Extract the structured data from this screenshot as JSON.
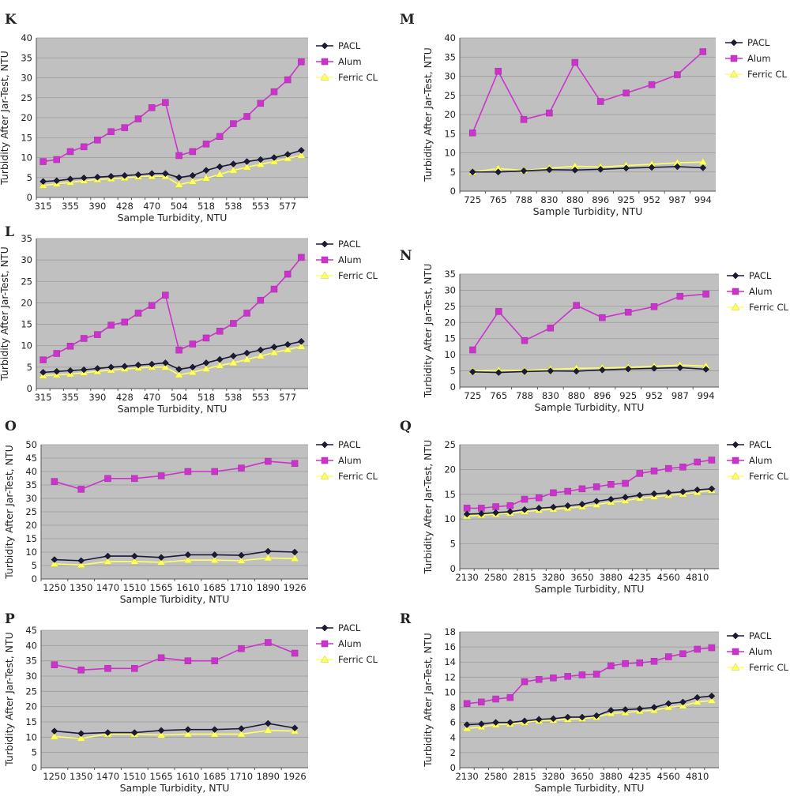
{
  "chart_data": [
    {
      "panel": "K",
      "type": "line",
      "categories": [
        "315",
        "",
        "355",
        "",
        "390",
        "",
        "428",
        "",
        "470",
        "",
        "504",
        "",
        "518",
        "",
        "538",
        "",
        "553",
        "",
        "577",
        ""
      ],
      "xlabel": "Sample Turbidity, NTU",
      "ylabel": "Turbidity After Jar-Test, NTU",
      "ylim": [
        0,
        40
      ],
      "ystep": 5,
      "grid": true,
      "legend": "right",
      "series": [
        {
          "name": "PACL",
          "values": [
            4.0,
            4.2,
            4.6,
            4.9,
            5.1,
            5.3,
            5.5,
            5.7,
            6.0,
            6.0,
            5.0,
            5.5,
            6.8,
            7.7,
            8.4,
            9.0,
            9.5,
            10.0,
            10.8,
            11.8
          ]
        },
        {
          "name": "Alum",
          "values": [
            9.0,
            9.5,
            11.5,
            12.7,
            14.4,
            16.5,
            17.5,
            19.7,
            22.5,
            23.8,
            10.5,
            11.5,
            13.4,
            15.3,
            18.5,
            20.3,
            23.6,
            26.5,
            29.5,
            34.0
          ]
        },
        {
          "name": "Ferric CL",
          "values": [
            3.0,
            3.4,
            3.8,
            4.2,
            4.5,
            4.7,
            4.9,
            5.2,
            5.3,
            5.3,
            3.2,
            4.0,
            4.8,
            5.8,
            6.8,
            7.6,
            8.3,
            9.0,
            9.8,
            10.5
          ]
        }
      ]
    },
    {
      "panel": "M",
      "type": "line",
      "categories": [
        "725",
        "765",
        "788",
        "830",
        "880",
        "896",
        "925",
        "952",
        "987",
        "994"
      ],
      "xlabel": "Sample Turbidity, NTU",
      "ylabel": "Turbidity After Jar-Test, NTU",
      "ylim": [
        0,
        40
      ],
      "ystep": 5,
      "grid": true,
      "legend": "right",
      "series": [
        {
          "name": "PACL",
          "values": [
            5.0,
            5.0,
            5.3,
            5.6,
            5.5,
            5.7,
            6.0,
            6.2,
            6.4,
            6.1
          ]
        },
        {
          "name": "Alum",
          "values": [
            15.2,
            31.3,
            18.7,
            20.4,
            33.6,
            23.4,
            25.6,
            27.8,
            30.4,
            36.4
          ]
        },
        {
          "name": "Ferric CL",
          "values": [
            5.0,
            5.9,
            5.4,
            6.0,
            6.5,
            6.3,
            6.7,
            7.0,
            7.4,
            7.6
          ]
        }
      ]
    },
    {
      "panel": "L",
      "type": "line",
      "categories": [
        "315",
        "",
        "355",
        "",
        "390",
        "",
        "428",
        "",
        "470",
        "",
        "504",
        "",
        "518",
        "",
        "538",
        "",
        "553",
        "",
        "577",
        ""
      ],
      "xlabel": "Sample Turbidity, NTU",
      "ylabel": "Turbidity After Jar-Test, NTU",
      "ylim": [
        0,
        35
      ],
      "ystep": 5,
      "grid": true,
      "legend": "right",
      "series": [
        {
          "name": "PACL",
          "values": [
            3.8,
            4.0,
            4.2,
            4.4,
            4.7,
            5.0,
            5.2,
            5.5,
            5.7,
            6.0,
            4.5,
            5.0,
            6.0,
            6.8,
            7.6,
            8.3,
            9.0,
            9.7,
            10.3,
            11.0
          ]
        },
        {
          "name": "Alum",
          "values": [
            6.7,
            8.2,
            9.9,
            11.7,
            12.6,
            14.8,
            15.5,
            17.6,
            19.4,
            21.8,
            9.0,
            10.4,
            11.8,
            13.4,
            15.2,
            17.6,
            20.6,
            23.2,
            26.7,
            30.6
          ]
        },
        {
          "name": "Ferric CL",
          "values": [
            3.0,
            3.2,
            3.4,
            3.7,
            4.0,
            4.3,
            4.6,
            4.8,
            5.0,
            5.0,
            3.2,
            3.8,
            4.6,
            5.4,
            6.0,
            6.8,
            7.6,
            8.4,
            9.1,
            9.8
          ]
        }
      ]
    },
    {
      "panel": "N",
      "type": "line",
      "categories": [
        "725",
        "765",
        "788",
        "830",
        "880",
        "896",
        "925",
        "952",
        "987",
        "994"
      ],
      "xlabel": "Sample Turbidity, NTU",
      "ylabel": "Turbidity After Jar-Test, NTU",
      "ylim": [
        0,
        35
      ],
      "ystep": 5,
      "grid": true,
      "legend": "right",
      "series": [
        {
          "name": "PACL",
          "values": [
            4.7,
            4.5,
            4.8,
            5.0,
            4.9,
            5.3,
            5.6,
            5.8,
            6.0,
            5.5
          ]
        },
        {
          "name": "Alum",
          "values": [
            11.5,
            23.4,
            14.4,
            18.3,
            25.3,
            21.5,
            23.2,
            24.9,
            28.1,
            28.8
          ]
        },
        {
          "name": "Ferric CL",
          "values": [
            4.9,
            5.2,
            5.1,
            5.5,
            5.8,
            5.9,
            6.1,
            6.4,
            6.8,
            6.5
          ]
        }
      ]
    },
    {
      "panel": "O",
      "type": "line",
      "categories": [
        "1250",
        "1350",
        "1470",
        "1510",
        "1565",
        "1610",
        "1685",
        "1710",
        "1890",
        "1926"
      ],
      "xlabel": "Sample Turbidity, NTU",
      "ylabel": "Turbidity After Jar-Test, NTU",
      "ylim": [
        0,
        50
      ],
      "ystep": 5,
      "grid": true,
      "legend": "right",
      "series": [
        {
          "name": "PACL",
          "values": [
            7.2,
            6.8,
            8.5,
            8.5,
            8.0,
            9.0,
            9.0,
            8.8,
            10.3,
            10.0
          ]
        },
        {
          "name": "Alum",
          "values": [
            36.3,
            33.4,
            37.4,
            37.4,
            38.4,
            40.0,
            40.0,
            41.3,
            43.8,
            43.0
          ]
        },
        {
          "name": "Ferric CL",
          "values": [
            5.6,
            5.2,
            6.5,
            6.5,
            6.2,
            7.0,
            7.0,
            6.8,
            7.8,
            7.6
          ]
        }
      ]
    },
    {
      "panel": "Q",
      "type": "line",
      "categories": [
        "2130",
        "",
        "2580",
        "",
        "2815",
        "",
        "3280",
        "",
        "3650",
        "",
        "3880",
        "",
        "4235",
        "",
        "4560",
        "",
        "4810",
        ""
      ],
      "xlabel": "Sample Turbidity, NTU",
      "ylabel": "Turbidity After Jar-Test, NTU",
      "ylim": [
        0,
        25
      ],
      "ystep": 5,
      "grid": true,
      "legend": "right",
      "series": [
        {
          "name": "PACL",
          "values": [
            11.0,
            11.1,
            11.3,
            11.5,
            11.9,
            12.2,
            12.4,
            12.7,
            13.0,
            13.6,
            14.0,
            14.4,
            14.8,
            15.1,
            15.3,
            15.5,
            15.9,
            16.1
          ]
        },
        {
          "name": "Alum",
          "values": [
            12.2,
            12.2,
            12.5,
            12.7,
            14.0,
            14.3,
            15.3,
            15.6,
            16.1,
            16.5,
            17.0,
            17.2,
            19.2,
            19.7,
            20.2,
            20.5,
            21.5,
            21.9
          ]
        },
        {
          "name": "Ferric CL",
          "values": [
            10.6,
            10.8,
            11.0,
            11.2,
            11.5,
            11.8,
            12.0,
            12.2,
            12.5,
            12.9,
            13.4,
            13.7,
            14.2,
            14.5,
            14.8,
            15.0,
            15.4,
            15.8
          ]
        }
      ]
    },
    {
      "panel": "P",
      "type": "line",
      "categories": [
        "1250",
        "1350",
        "1470",
        "1510",
        "1565",
        "1610",
        "1685",
        "1710",
        "1890",
        "1926"
      ],
      "xlabel": "Sample Turbidity, NTU",
      "ylabel": "Turbidity After Jar-Test, NTU",
      "ylim": [
        0,
        45
      ],
      "ystep": 5,
      "grid": true,
      "legend": "right",
      "series": [
        {
          "name": "PACL",
          "values": [
            12.0,
            11.2,
            11.5,
            11.5,
            12.2,
            12.5,
            12.5,
            12.8,
            14.5,
            13.0
          ]
        },
        {
          "name": "Alum",
          "values": [
            33.7,
            32.0,
            32.5,
            32.5,
            36.0,
            35.0,
            35.0,
            39.0,
            41.0,
            37.5
          ]
        },
        {
          "name": "Ferric CL",
          "values": [
            10.2,
            9.6,
            11.0,
            11.0,
            10.7,
            11.0,
            11.0,
            11.0,
            12.2,
            12.0
          ]
        }
      ]
    },
    {
      "panel": "R",
      "type": "line",
      "categories": [
        "2130",
        "",
        "2580",
        "",
        "2815",
        "",
        "3280",
        "",
        "3650",
        "",
        "3880",
        "",
        "4235",
        "",
        "4560",
        "",
        "4810",
        ""
      ],
      "xlabel": "Sample Turbidity, NTU",
      "ylabel": "Turbidity After Jar-Test, NTU",
      "ylim": [
        0,
        18
      ],
      "ystep": 2,
      "grid": true,
      "legend": "right",
      "series": [
        {
          "name": "PACL",
          "values": [
            5.7,
            5.8,
            6.0,
            6.0,
            6.2,
            6.4,
            6.5,
            6.7,
            6.7,
            6.9,
            7.6,
            7.7,
            7.8,
            8.0,
            8.5,
            8.7,
            9.3,
            9.5
          ]
        },
        {
          "name": "Alum",
          "values": [
            8.5,
            8.7,
            9.1,
            9.3,
            11.4,
            11.7,
            11.9,
            12.1,
            12.3,
            12.4,
            13.5,
            13.8,
            13.9,
            14.1,
            14.7,
            15.1,
            15.7,
            15.9
          ]
        },
        {
          "name": "Ferric CL",
          "values": [
            5.2,
            5.4,
            5.7,
            5.8,
            6.0,
            6.2,
            6.3,
            6.4,
            6.5,
            6.7,
            7.2,
            7.3,
            7.5,
            7.6,
            8.0,
            8.2,
            8.7,
            8.9
          ]
        }
      ]
    }
  ],
  "colors": {
    "PACL": "#1a1a3a",
    "Alum": "#cc33cc",
    "Ferric CL": "#ffff66",
    "plot_bg": "#c0c0c0"
  },
  "series_markers": {
    "PACL": "diamond",
    "Alum": "square",
    "Ferric CL": "triangle"
  }
}
